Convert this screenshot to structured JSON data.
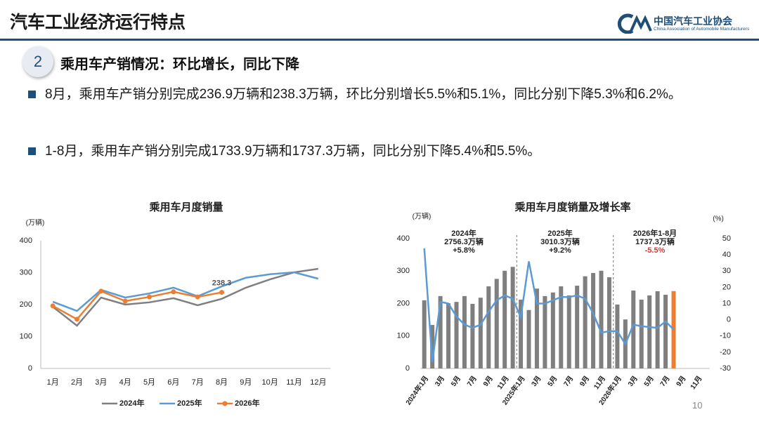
{
  "header": {
    "title": "汽车工业经济运行特点",
    "org_name": "中国汽车工业协会",
    "org_name_en": "China Association of Automobile Manufacturers"
  },
  "section": {
    "number": 2,
    "heading": "乘用车产销情况：环比增长，同比下降"
  },
  "bullets": [
    "8月，乘用车产销分别完成236.9万辆和238.3万辆，环比分别增长5.5%和5.1%，同比分别下降5.3%和6.2%。",
    "1-8月，乘用车产销分别完成1733.9万辆和1737.3万辆，同比分别下降5.4%和5.5%。"
  ],
  "page_number": 10,
  "chart_data": [
    {
      "type": "line",
      "title": "乘用车月度销量",
      "y_label": "(万辆)",
      "categories": [
        "1月",
        "2月",
        "3月",
        "4月",
        "5月",
        "6月",
        "7月",
        "8月",
        "9月",
        "10月",
        "11月",
        "12月"
      ],
      "ylim": [
        0,
        400
      ],
      "yticks": [
        0,
        100,
        200,
        300,
        400
      ],
      "grid": false,
      "legend": "bottom",
      "series": [
        {
          "name": "2024年",
          "color": "#7f7f7f",
          "marker": false,
          "values": [
            193,
            134,
            222,
            200,
            207,
            220,
            198,
            218,
            253,
            279,
            301,
            312
          ]
        },
        {
          "name": "2025年",
          "color": "#5b9bd5",
          "marker": false,
          "values": [
            209,
            180,
            246,
            222,
            235,
            253,
            226,
            257,
            284,
            295,
            301,
            281
          ]
        },
        {
          "name": "2026年",
          "color": "#ed7d31",
          "marker": true,
          "values": [
            196,
            154,
            242,
            211,
            224,
            240,
            224,
            238.3,
            null,
            null,
            null,
            null
          ],
          "value_labels": [
            null,
            null,
            null,
            null,
            null,
            null,
            null,
            "238.3",
            null,
            null,
            null,
            null
          ]
        }
      ]
    },
    {
      "type": "bar_line",
      "title": "乘用车月度销量及增长率",
      "y_label": "(万辆)",
      "y2_label": "(%)",
      "categories": [
        "2024年1月",
        null,
        "3月",
        null,
        "5月",
        null,
        "7月",
        null,
        "9月",
        null,
        "11月",
        null,
        "2025年1月",
        null,
        "3月",
        null,
        "5月",
        null,
        "7月",
        null,
        "9月",
        null,
        "11月",
        null,
        "2026年1月",
        null,
        "3月",
        null,
        "5月",
        null,
        "7月",
        null,
        "9月",
        null,
        "11月",
        null
      ],
      "ylim": [
        0,
        400
      ],
      "yticks": [
        0,
        100,
        200,
        300,
        400
      ],
      "y2lim": [
        -30,
        50
      ],
      "y2ticks": [
        -30,
        -20,
        -10,
        0,
        10,
        20,
        30,
        40,
        50
      ],
      "grid": false,
      "series": [
        {
          "type": "bar",
          "colors": [
            "#7f7f7f",
            "#7f7f7f",
            "#7f7f7f",
            "#7f7f7f",
            "#7f7f7f",
            "#7f7f7f",
            "#7f7f7f",
            "#7f7f7f",
            "#7f7f7f",
            "#7f7f7f",
            "#7f7f7f",
            "#7f7f7f",
            "#7f7f7f",
            "#7f7f7f",
            "#7f7f7f",
            "#7f7f7f",
            "#7f7f7f",
            "#7f7f7f",
            "#7f7f7f",
            "#7f7f7f",
            "#7f7f7f",
            "#7f7f7f",
            "#7f7f7f",
            "#7f7f7f",
            "#7f7f7f",
            "#7f7f7f",
            "#7f7f7f",
            "#7f7f7f",
            "#7f7f7f",
            "#7f7f7f",
            "#7f7f7f",
            "#ed7d31",
            "#7f7f7f",
            "#7f7f7f",
            "#7f7f7f",
            "#7f7f7f"
          ],
          "values": [
            210,
            134,
            223,
            201,
            205,
            223,
            199,
            218,
            253,
            276,
            301,
            313,
            212,
            180,
            246,
            223,
            234,
            253,
            225,
            255,
            284,
            294,
            301,
            281,
            197,
            151,
            240,
            212,
            225,
            238,
            227,
            238.3,
            null,
            null,
            null,
            null
          ]
        },
        {
          "type": "line",
          "axis": "y2",
          "color": "#5b9bd5",
          "values": [
            44,
            -26,
            11,
            10,
            2,
            -3,
            -5,
            -3,
            5,
            12,
            15,
            13,
            1.5,
            36,
            10,
            10,
            12,
            14,
            14,
            15,
            13,
            4,
            -8,
            -7,
            -7,
            -15,
            -3,
            -4,
            -4.5,
            -5,
            -1,
            -6,
            null,
            null,
            null,
            null
          ]
        }
      ],
      "annotations": [
        {
          "lines": [
            "2024年",
            "2756.3万辆",
            "+5.8%"
          ]
        },
        {
          "lines": [
            "2025年",
            "3010.3万辆",
            "+9.2%"
          ]
        },
        {
          "lines": [
            "2026年1-8月",
            "1737.3万辆",
            "-5.5%"
          ],
          "last_line_color": "#e03030"
        }
      ]
    }
  ]
}
